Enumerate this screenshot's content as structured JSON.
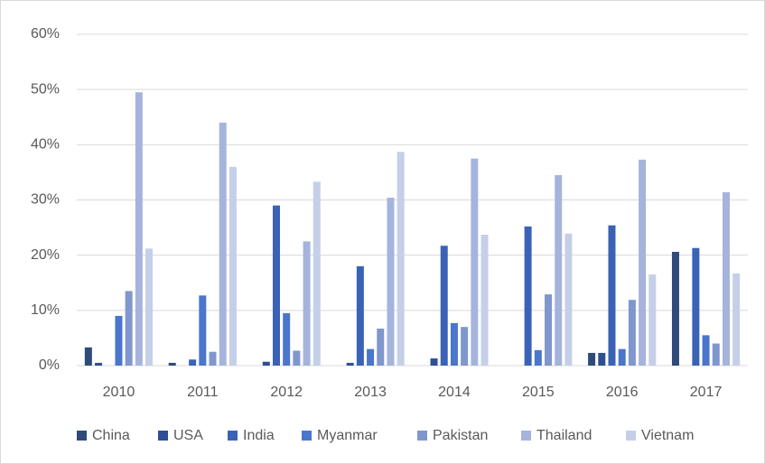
{
  "chart_data": {
    "type": "bar",
    "categories": [
      "2010",
      "2011",
      "2012",
      "2013",
      "2014",
      "2015",
      "2016",
      "2017"
    ],
    "series": [
      {
        "name": "China",
        "color": "#2f4b7c",
        "values": [
          3.3,
          0.5,
          0,
          0,
          0,
          0,
          2.3,
          20.6
        ]
      },
      {
        "name": "USA",
        "color": "#2e4f95",
        "values": [
          0.5,
          0,
          0.7,
          0.5,
          1.3,
          0,
          2.3,
          0
        ]
      },
      {
        "name": "India",
        "color": "#3a63b7",
        "values": [
          0,
          1.1,
          29,
          18,
          21.7,
          25.2,
          25.4,
          21.3
        ]
      },
      {
        "name": "Myanmar",
        "color": "#4a76cc",
        "values": [
          9,
          12.7,
          9.5,
          3,
          7.7,
          2.8,
          3,
          5.5
        ]
      },
      {
        "name": "Pakistan",
        "color": "#7f97cc",
        "values": [
          13.5,
          2.5,
          2.7,
          6.7,
          7,
          12.9,
          11.9,
          4
        ]
      },
      {
        "name": "Thailand",
        "color": "#a5b4dc",
        "values": [
          49.5,
          44,
          22.5,
          30.4,
          37.5,
          34.5,
          37.3,
          31.4
        ]
      },
      {
        "name": "Vietnam",
        "color": "#c5cfe8",
        "values": [
          21.2,
          36,
          33.3,
          38.7,
          23.7,
          23.9,
          16.5,
          16.7
        ]
      }
    ],
    "ylim": [
      0,
      60
    ],
    "yticks": [
      {
        "value": 0,
        "label": "0%"
      },
      {
        "value": 10,
        "label": "10%"
      },
      {
        "value": 20,
        "label": "20%"
      },
      {
        "value": 30,
        "label": "30%"
      },
      {
        "value": 40,
        "label": "40%"
      },
      {
        "value": 50,
        "label": "50%"
      },
      {
        "value": 60,
        "label": "60%"
      }
    ],
    "grid": true,
    "legend": "bottom"
  }
}
